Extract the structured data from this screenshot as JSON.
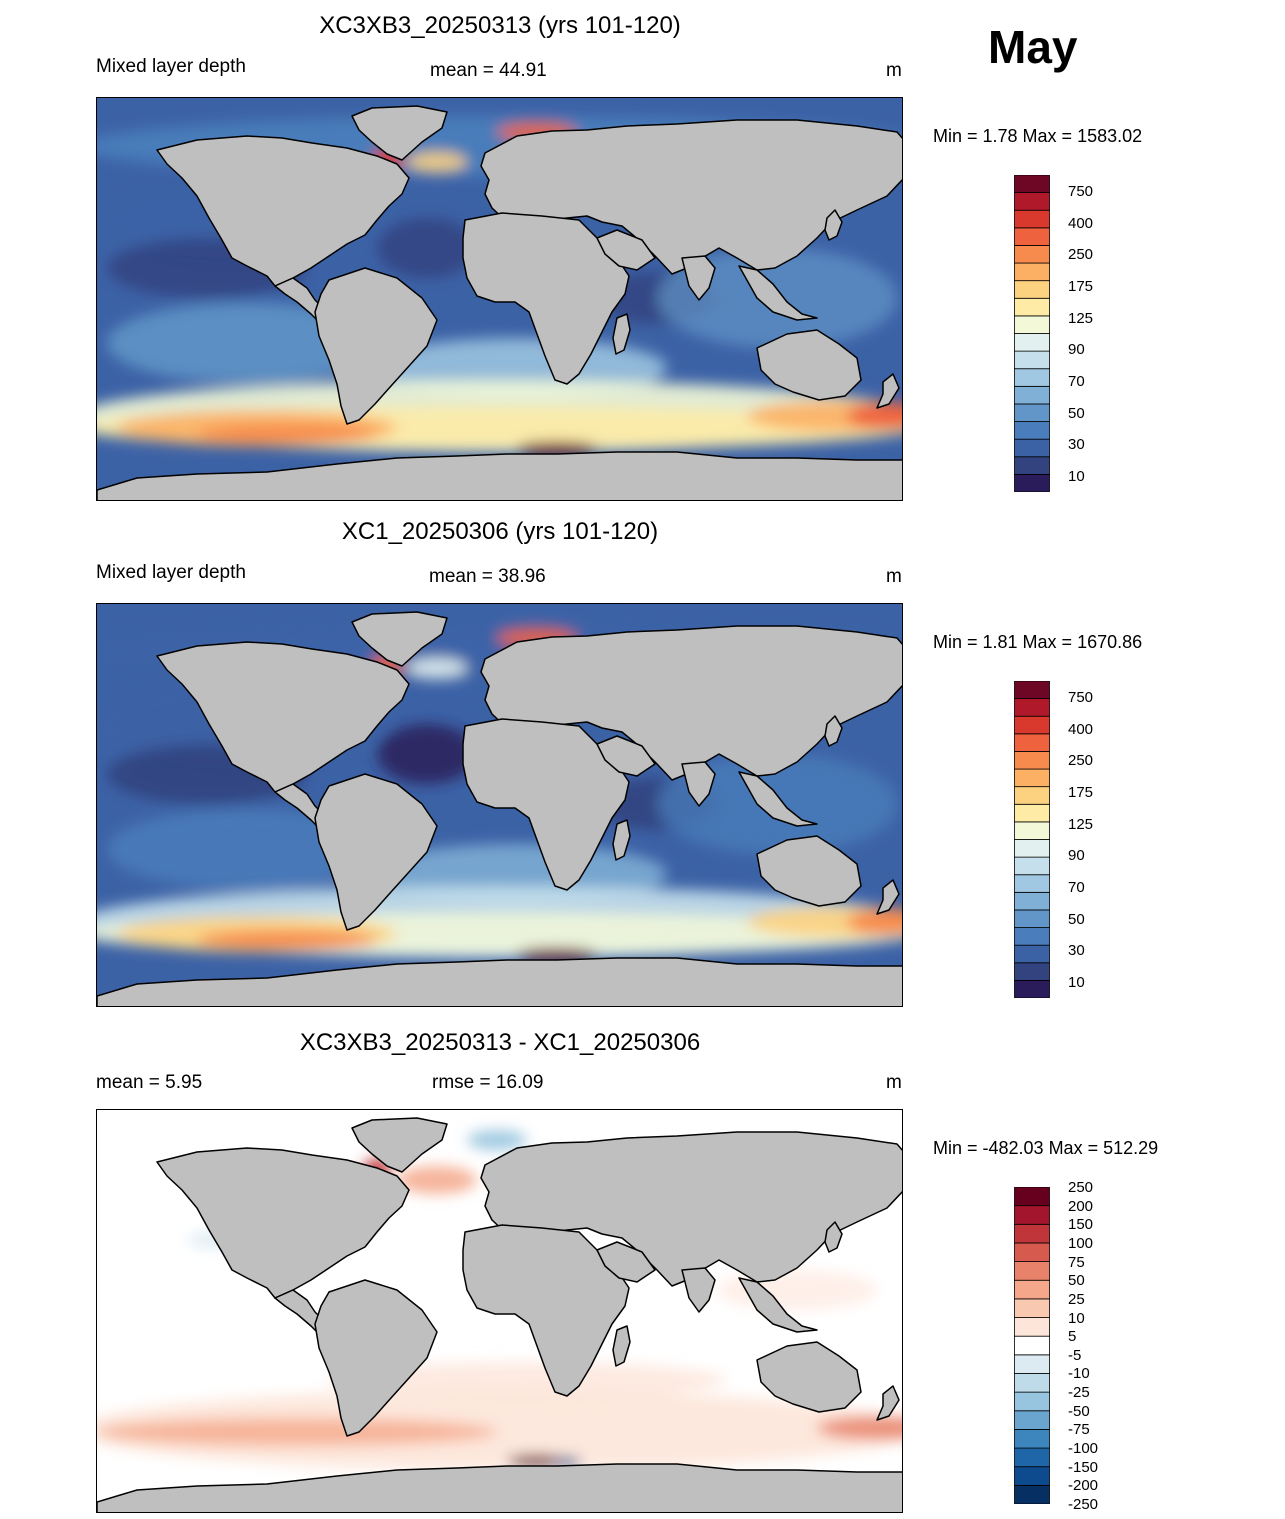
{
  "month": "May",
  "land_color": "#bfbfbf",
  "panels": [
    {
      "id": "p1",
      "title": "XC3XB3_20250313 (yrs 101-120)",
      "left_label": "Mixed layer depth",
      "center_label": "mean =  44.91",
      "unit": "m",
      "minmax": "Min =    1.78 Max = 1583.02",
      "colorbar_colors": [
        "#2a1c5a",
        "#324380",
        "#3c62a6",
        "#4a7dbb",
        "#6296c8",
        "#80b0d6",
        "#a0c8e2",
        "#c5e0ec",
        "#e2f1f0",
        "#f3f9d8",
        "#fdeba6",
        "#fcd17f",
        "#fbb063",
        "#f78a4d",
        "#ee623d",
        "#d9392c",
        "#b0192a",
        "#6e0725"
      ],
      "colorbar_labels": [
        "750",
        "400",
        "250",
        "175",
        "125",
        "90",
        "70",
        "50",
        "30",
        "10"
      ]
    },
    {
      "id": "p2",
      "title": "XC1_20250306 (yrs 101-120)",
      "left_label": "Mixed layer depth",
      "center_label": "mean =  38.96",
      "unit": "m",
      "minmax": "Min =    1.81 Max = 1670.86",
      "colorbar_colors": [
        "#2a1c5a",
        "#324380",
        "#3c62a6",
        "#4a7dbb",
        "#6296c8",
        "#80b0d6",
        "#a0c8e2",
        "#c5e0ec",
        "#e2f1f0",
        "#f3f9d8",
        "#fdeba6",
        "#fcd17f",
        "#fbb063",
        "#f78a4d",
        "#ee623d",
        "#d9392c",
        "#b0192a",
        "#6e0725"
      ],
      "colorbar_labels": [
        "750",
        "400",
        "250",
        "175",
        "125",
        "90",
        "70",
        "50",
        "30",
        "10"
      ]
    },
    {
      "id": "p3",
      "title": "XC3XB3_20250313 - XC1_20250306",
      "left_label": "mean =   5.95",
      "center_label": "rmse =  16.09",
      "unit": "m",
      "minmax": "Min = -482.03 Max = 512.29",
      "colorbar_colors": [
        "#062f63",
        "#0d4a8e",
        "#1f66a8",
        "#3c85bd",
        "#6aa5cf",
        "#97c4df",
        "#bfdbea",
        "#dcebf2",
        "#ffffff",
        "#fde5d9",
        "#f9c8b0",
        "#f4a78a",
        "#e9826a",
        "#d65a4e",
        "#c0353a",
        "#a3152c",
        "#67001f"
      ],
      "colorbar_labels": [
        "250",
        "200",
        "150",
        "100",
        "75",
        "50",
        "25",
        "10",
        "5",
        "-5",
        "-10",
        "-25",
        "-50",
        "-75",
        "-100",
        "-150",
        "-200",
        "-250"
      ]
    }
  ]
}
